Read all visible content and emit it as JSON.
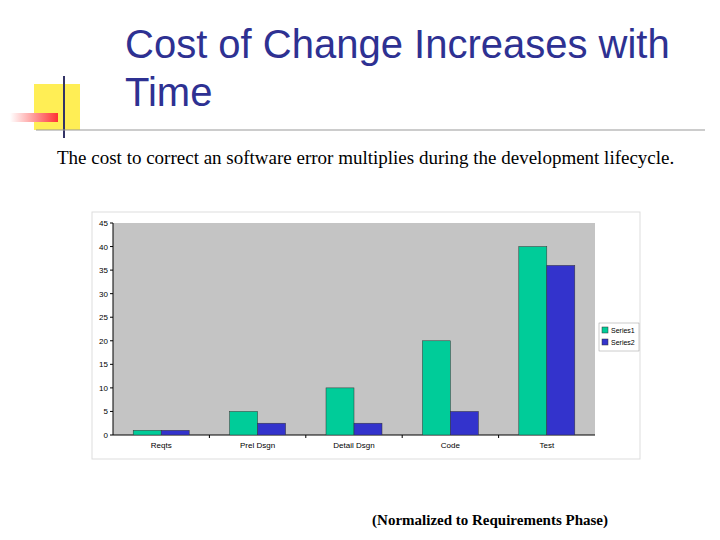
{
  "chart_data": {
    "type": "bar",
    "title": "Cost of Change Increases with Time",
    "subtitle": "The cost to correct an software error multiplies during the development lifecycle.",
    "annotations": [
      "(Normalized to Requirements Phase)"
    ],
    "categories": [
      "Reqts",
      "Prel Dsgn",
      "Detail Dsgn",
      "Code",
      "Test"
    ],
    "series": [
      {
        "name": "Series1",
        "color": "#00cc99",
        "values": [
          1,
          5,
          10,
          20,
          40
        ]
      },
      {
        "name": "Series2",
        "color": "#3333cc",
        "values": [
          1,
          2.5,
          2.5,
          5,
          36
        ]
      }
    ],
    "ylim": [
      0,
      45
    ],
    "yticks": [
      0,
      5,
      10,
      15,
      20,
      25,
      30,
      35,
      40,
      45
    ],
    "grid": false,
    "legend": "right"
  }
}
